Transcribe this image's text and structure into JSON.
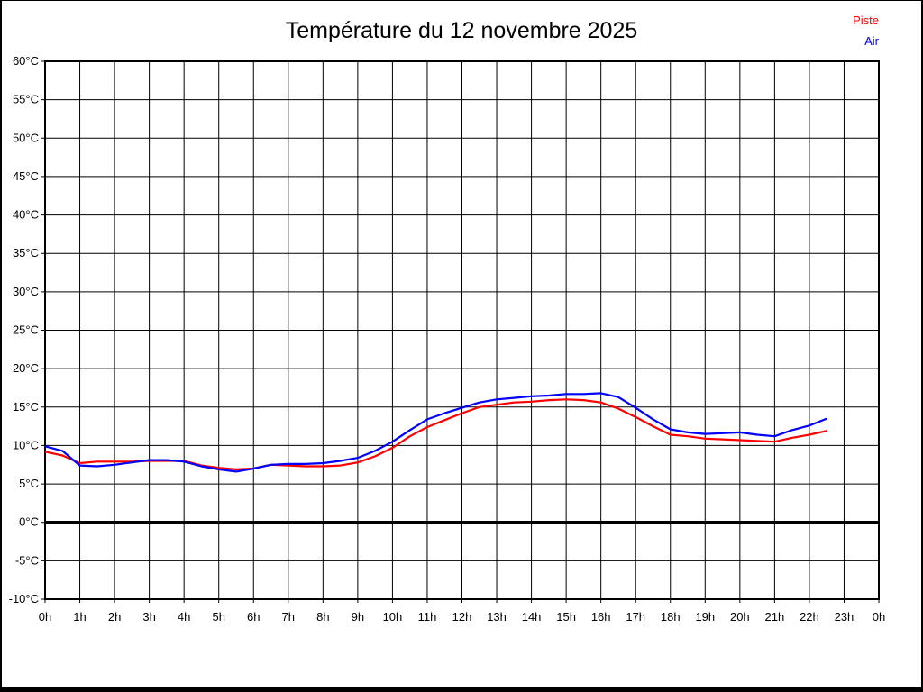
{
  "title": "Température du 12 novembre 2025",
  "legend": {
    "items": [
      {
        "label": "Piste",
        "color": "#ff0000"
      },
      {
        "label": "Air",
        "color": "#0000ff"
      }
    ],
    "position": "top-right"
  },
  "colors": {
    "background": "#ffffff",
    "grid": "#000000",
    "frame": "#000000",
    "zero_line": "#000000",
    "title_text": "#000000",
    "tick_text": "#000000"
  },
  "chart_data": {
    "type": "line",
    "title": "Température du 12 novembre 2025",
    "xlabel": "",
    "ylabel": "",
    "xlim": [
      0,
      24
    ],
    "ylim": [
      -10,
      60
    ],
    "y_tick_step": 5,
    "grid": true,
    "legend_position": "top-right",
    "zero_line_value": 0,
    "y_tick_labels": [
      "60°C",
      "55°C",
      "50°C",
      "45°C",
      "40°C",
      "35°C",
      "30°C",
      "25°C",
      "20°C",
      "15°C",
      "10°C",
      "5°C",
      "0°C",
      "-5°C",
      "-10°C"
    ],
    "x_tick_labels": [
      "0h",
      "1h",
      "2h",
      "3h",
      "4h",
      "5h",
      "6h",
      "7h",
      "8h",
      "9h",
      "10h",
      "11h",
      "12h",
      "13h",
      "14h",
      "15h",
      "16h",
      "17h",
      "18h",
      "19h",
      "20h",
      "21h",
      "22h",
      "23h",
      "0h"
    ],
    "x_unit": "hours",
    "y_unit": "°C",
    "x": [
      0,
      0.5,
      1,
      1.5,
      2,
      2.5,
      3,
      3.5,
      4,
      4.5,
      5,
      5.5,
      6,
      6.5,
      7,
      7.5,
      8,
      8.5,
      9,
      9.5,
      10,
      10.5,
      11,
      11.5,
      12,
      12.5,
      13,
      13.5,
      14,
      14.5,
      15,
      15.5,
      16,
      16.5,
      17,
      17.5,
      18,
      18.5,
      19,
      19.5,
      20,
      20.5,
      21,
      21.5,
      22,
      22.5
    ],
    "series": [
      {
        "name": "Piste",
        "color": "#ff0000",
        "values": [
          9.2,
          8.7,
          7.7,
          7.9,
          7.9,
          7.9,
          8.0,
          8.0,
          8.0,
          7.4,
          7.1,
          6.9,
          7.0,
          7.5,
          7.4,
          7.3,
          7.3,
          7.4,
          7.8,
          8.6,
          9.7,
          11.2,
          12.4,
          13.3,
          14.2,
          15.0,
          15.3,
          15.6,
          15.7,
          15.9,
          16.0,
          15.9,
          15.6,
          14.8,
          13.7,
          12.5,
          11.4,
          11.2,
          10.9,
          10.8,
          10.7,
          10.6,
          10.5,
          11.0,
          11.4,
          11.9
        ]
      },
      {
        "name": "Air",
        "color": "#0000ff",
        "values": [
          9.9,
          9.3,
          7.4,
          7.3,
          7.5,
          7.8,
          8.1,
          8.1,
          7.9,
          7.3,
          6.9,
          6.6,
          7.0,
          7.5,
          7.6,
          7.6,
          7.7,
          8.0,
          8.4,
          9.3,
          10.5,
          12.0,
          13.4,
          14.2,
          14.9,
          15.6,
          16.0,
          16.2,
          16.4,
          16.5,
          16.7,
          16.7,
          16.8,
          16.3,
          14.9,
          13.4,
          12.1,
          11.7,
          11.5,
          11.6,
          11.7,
          11.4,
          11.2,
          12.0,
          12.6,
          13.5
        ]
      }
    ]
  }
}
